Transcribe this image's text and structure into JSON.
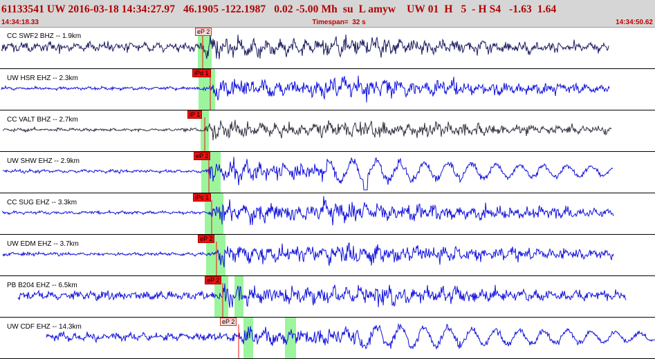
{
  "header": {
    "event_line": "61133541 UW 2016-03-18 14:34:27.97   46.1905 -122.1987   0.02 -5.00 Mh  su  L amyw    UW 01  H   5  - H S4   -1.63  1.64",
    "time_start": "14:34:18.33",
    "timespan": "Timespan=  32 s",
    "time_end": "14:34:50.62"
  },
  "colors": {
    "trace_blue": "#1010dd",
    "trace_navy": "#1a1a5e",
    "trace_dark": "#303040",
    "pick_red": "#ee1111",
    "pick_window_green": "#9cf59c",
    "header_bg": "#d6d6d6",
    "header_text": "#b00000"
  },
  "panels": [
    {
      "label": "CC SWF2 BHZ -- 1.9km",
      "pick": "eP 2",
      "pick_style": "pred",
      "color": "trace_navy",
      "amp": 1.0
    },
    {
      "label": "UW HSR EHZ -- 2.3km",
      "pick": "iPd 1",
      "pick_style": "final",
      "color": "trace_blue",
      "amp": 1.0
    },
    {
      "label": "CC VALT BHZ -- 2.7km",
      "pick": "iP 1",
      "pick_style": "final",
      "color": "trace_dark",
      "amp": 1.0
    },
    {
      "label": "UW SHW EHZ -- 2.9km",
      "pick": "eP 2",
      "pick_style": "final",
      "color": "trace_blue",
      "amp": 1.0
    },
    {
      "label": "CC SUG EHZ -- 3.3km",
      "pick": "iPc 1",
      "pick_style": "final",
      "color": "trace_blue",
      "amp": 1.0
    },
    {
      "label": "UW EDM EHZ -- 3.7km",
      "pick": "eP 2",
      "pick_style": "final",
      "color": "trace_blue",
      "amp": 1.0
    },
    {
      "label": "PB B204 EHZ -- 6.5km",
      "pick": "eP 2",
      "pick_style": "final",
      "color": "trace_blue",
      "amp": 1.0
    },
    {
      "label": "UW CDF EHZ -- 14.3km",
      "pick": "eP 2",
      "pick_style": "pred",
      "color": "trace_blue",
      "amp": 1.0
    }
  ]
}
